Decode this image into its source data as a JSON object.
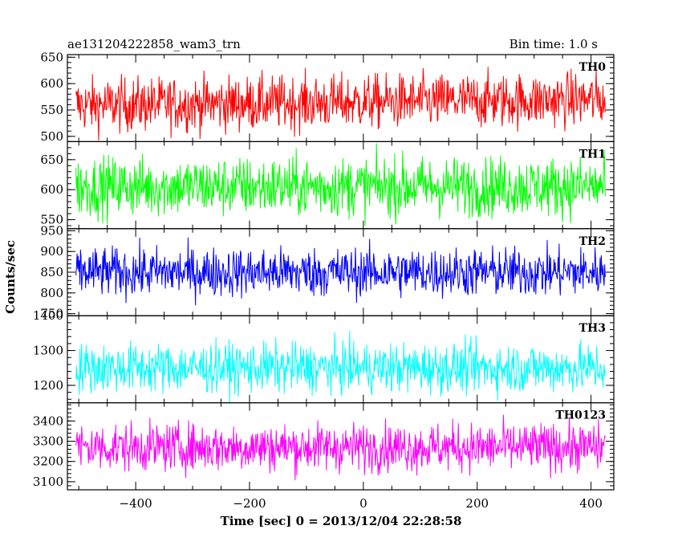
{
  "header": {
    "left": "ae131204222858_wam3_trn",
    "right": "Bin time: 1.0 s"
  },
  "chart_data": {
    "type": "line",
    "title": "ae131204222858_wam3_trn",
    "bin_time_label": "Bin time: 1.0 s",
    "xlabel": "Time [sec] 0 = 2013/12/04 22:28:58",
    "ylabel": "Counts/sec",
    "xlim": [
      -520,
      440
    ],
    "x_range": [
      -505,
      425
    ],
    "x_ticks": [
      -400,
      -200,
      0,
      200,
      400
    ],
    "grid": false,
    "legend": "none",
    "panels": [
      {
        "name": "TH0",
        "color": "#ff0000",
        "ylim": [
          490,
          655
        ],
        "yticks": [
          500,
          550,
          600,
          650
        ],
        "mean": 565,
        "spread": 26
      },
      {
        "name": "TH1",
        "color": "#00ff00",
        "ylim": [
          535,
          680
        ],
        "yticks": [
          550,
          600,
          650
        ],
        "mean": 605,
        "spread": 25
      },
      {
        "name": "TH2",
        "color": "#0000ff",
        "ylim": [
          745,
          955
        ],
        "yticks": [
          750,
          800,
          850,
          900,
          950
        ],
        "mean": 850,
        "spread": 30
      },
      {
        "name": "TH3",
        "color": "#00ffff",
        "ylim": [
          1150,
          1400
        ],
        "yticks": [
          1200,
          1300,
          1400
        ],
        "mean": 1250,
        "spread": 36
      },
      {
        "name": "TH0123",
        "color": "#ff00ff",
        "ylim": [
          3060,
          3490
        ],
        "yticks": [
          3100,
          3200,
          3300,
          3400
        ],
        "mean": 3270,
        "spread": 60
      }
    ]
  }
}
